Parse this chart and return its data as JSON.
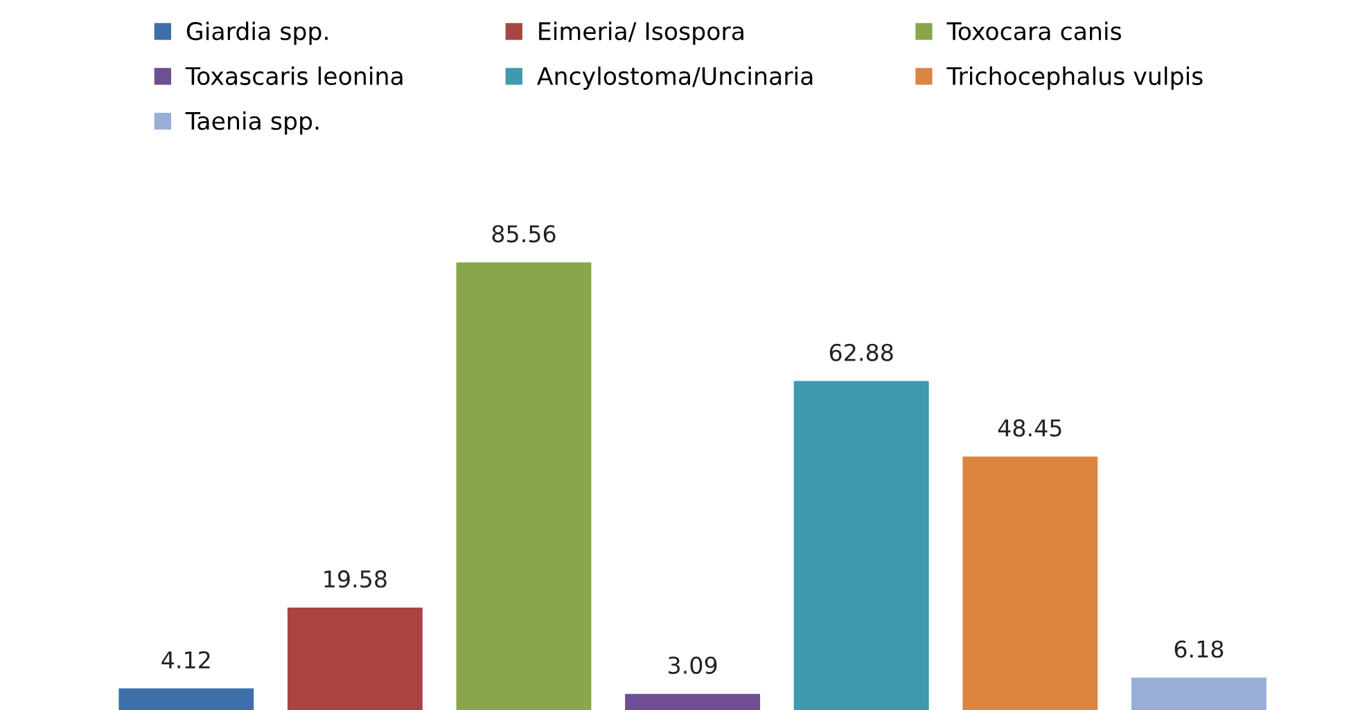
{
  "chart_data": {
    "type": "bar",
    "categories": [
      null
    ],
    "series": [
      {
        "name": "Giardia spp.",
        "color": "#3f6faa",
        "values": [
          4.12
        ]
      },
      {
        "name": "Eimeria/ Isospora",
        "color": "#a94442",
        "values": [
          19.58
        ]
      },
      {
        "name": "Toxocara canis",
        "color": "#89a64b",
        "values": [
          85.56
        ]
      },
      {
        "name": "Toxascaris leonina",
        "color": "#6e4f93",
        "values": [
          3.09
        ]
      },
      {
        "name": "Ancylostoma/Uncinaria",
        "color": "#3f9ab0",
        "values": [
          62.88
        ]
      },
      {
        "name": "Trichocephalus vulpis",
        "color": "#dd8441",
        "values": [
          48.45
        ]
      },
      {
        "name": "Taenia spp.",
        "color": "#98aed6",
        "values": [
          6.18
        ]
      }
    ],
    "data_labels": true,
    "legend": "top",
    "tick_labels": false,
    "grid": false
  }
}
